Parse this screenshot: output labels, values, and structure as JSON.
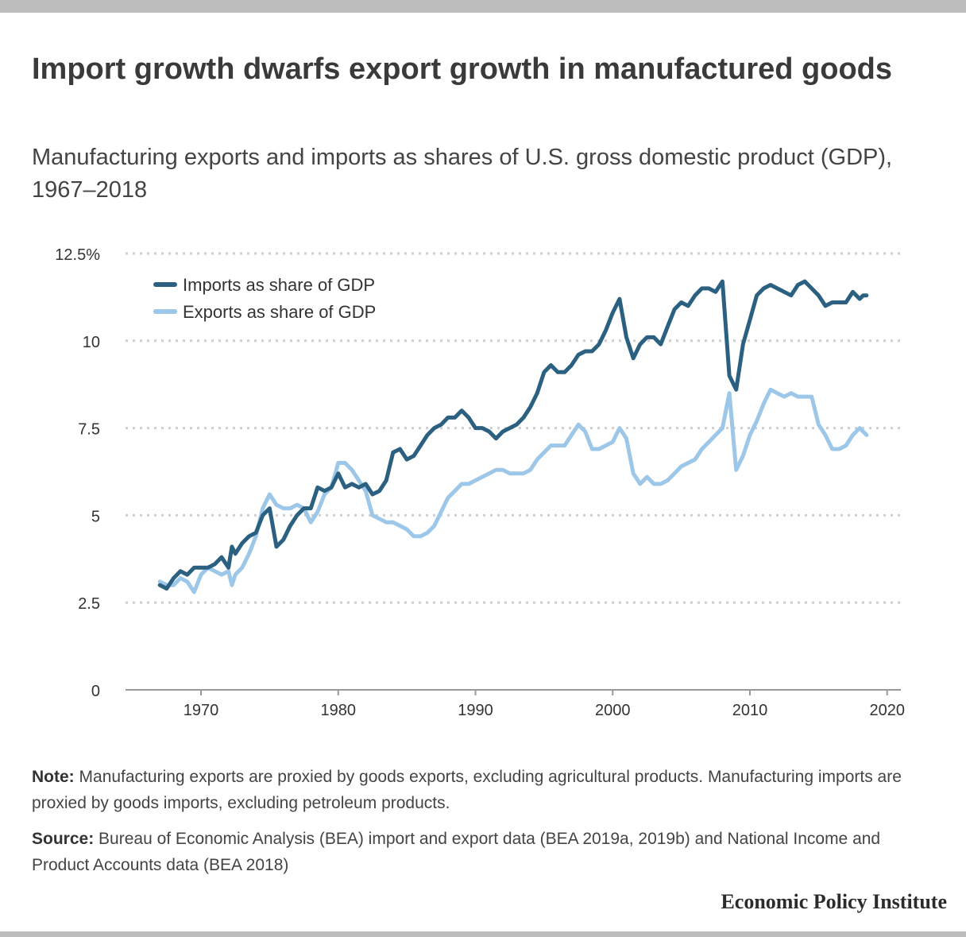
{
  "header": {
    "title": "Import growth dwarfs export growth in manufactured goods",
    "subtitle": "Manufacturing exports and imports as shares of U.S. gross domestic product (GDP), 1967–2018"
  },
  "footer": {
    "note_label": "Note:",
    "note_text": "Manufacturing exports are proxied by goods exports, excluding agricultural products. Manufacturing imports are proxied by goods imports, excluding petroleum products.",
    "source_label": "Source:",
    "source_text": "Bureau of Economic Analysis (BEA) import and export data (BEA 2019a, 2019b) and National Income and Product Accounts data (BEA 2018)",
    "brand": "Economic Policy Institute"
  },
  "colors": {
    "imports": "#2b6081",
    "exports": "#9dc7e8",
    "grid": "#cfcfcf",
    "axis": "#999999"
  },
  "chart_data": {
    "type": "line",
    "xlim": [
      1964.5,
      2021
    ],
    "ylim": [
      0,
      12.5
    ],
    "x_ticks": [
      1970,
      1980,
      1990,
      2000,
      2010,
      2020
    ],
    "y_ticks": [
      0,
      2.5,
      5,
      7.5,
      10,
      12.5
    ],
    "y_tick_labels": [
      "0",
      "2.5",
      "5",
      "7.5",
      "10",
      "12.5%"
    ],
    "grid": "horizontal dotted",
    "legend_position": "top-left",
    "series": [
      {
        "name": "Imports as share of GDP",
        "color": "#2b6081",
        "x": [
          1967.0,
          1967.5,
          1968.0,
          1968.5,
          1969.0,
          1969.5,
          1970.0,
          1970.5,
          1971.0,
          1971.5,
          1972.0,
          1972.25,
          1972.5,
          1973.0,
          1973.5,
          1974.0,
          1974.5,
          1975.0,
          1975.5,
          1976.0,
          1976.5,
          1977.0,
          1977.5,
          1978.0,
          1978.5,
          1979.0,
          1979.5,
          1980.0,
          1980.5,
          1981.0,
          1981.5,
          1982.0,
          1982.5,
          1983.0,
          1983.5,
          1984.0,
          1984.5,
          1985.0,
          1985.5,
          1986.0,
          1986.5,
          1987.0,
          1987.5,
          1988.0,
          1988.5,
          1989.0,
          1989.5,
          1990.0,
          1990.5,
          1991.0,
          1991.5,
          1992.0,
          1992.5,
          1993.0,
          1993.5,
          1994.0,
          1994.5,
          1995.0,
          1995.5,
          1996.0,
          1996.5,
          1997.0,
          1997.5,
          1998.0,
          1998.5,
          1999.0,
          1999.5,
          2000.0,
          2000.5,
          2001.0,
          2001.5,
          2002.0,
          2002.5,
          2003.0,
          2003.5,
          2004.0,
          2004.5,
          2005.0,
          2005.5,
          2006.0,
          2006.5,
          2007.0,
          2007.5,
          2008.0,
          2008.5,
          2009.0,
          2009.5,
          2010.0,
          2010.5,
          2011.0,
          2011.5,
          2012.0,
          2012.5,
          2013.0,
          2013.5,
          2014.0,
          2014.5,
          2015.0,
          2015.5,
          2016.0,
          2016.5,
          2017.0,
          2017.5,
          2018.0,
          2018.25,
          2018.5
        ],
        "values": [
          3.0,
          2.9,
          3.2,
          3.4,
          3.3,
          3.5,
          3.5,
          3.5,
          3.6,
          3.8,
          3.5,
          4.1,
          3.9,
          4.2,
          4.4,
          4.5,
          5.0,
          5.2,
          4.1,
          4.3,
          4.7,
          5.0,
          5.2,
          5.2,
          5.8,
          5.7,
          5.8,
          6.2,
          5.8,
          5.9,
          5.8,
          5.9,
          5.6,
          5.7,
          6.0,
          6.8,
          6.9,
          6.6,
          6.7,
          7.0,
          7.3,
          7.5,
          7.6,
          7.8,
          7.8,
          8.0,
          7.8,
          7.5,
          7.5,
          7.4,
          7.2,
          7.4,
          7.5,
          7.6,
          7.8,
          8.1,
          8.5,
          9.1,
          9.3,
          9.1,
          9.1,
          9.3,
          9.6,
          9.7,
          9.7,
          9.9,
          10.3,
          10.8,
          11.2,
          10.1,
          9.5,
          9.9,
          10.1,
          10.1,
          9.9,
          10.4,
          10.9,
          11.1,
          11.0,
          11.3,
          11.5,
          11.5,
          11.4,
          11.7,
          9.0,
          8.6,
          9.9,
          10.6,
          11.3,
          11.5,
          11.6,
          11.5,
          11.4,
          11.3,
          11.6,
          11.7,
          11.5,
          11.3,
          11.0,
          11.1,
          11.1,
          11.1,
          11.4,
          11.2,
          11.3,
          11.3
        ]
      },
      {
        "name": "Exports as share of GDP",
        "color": "#9dc7e8",
        "x": [
          1967.0,
          1967.5,
          1968.0,
          1968.5,
          1969.0,
          1969.5,
          1970.0,
          1970.5,
          1971.0,
          1971.5,
          1972.0,
          1972.25,
          1972.5,
          1973.0,
          1973.5,
          1974.0,
          1974.5,
          1975.0,
          1975.5,
          1976.0,
          1976.5,
          1977.0,
          1977.5,
          1978.0,
          1978.5,
          1979.0,
          1979.5,
          1980.0,
          1980.5,
          1981.0,
          1981.5,
          1982.0,
          1982.5,
          1983.0,
          1983.5,
          1984.0,
          1984.5,
          1985.0,
          1985.5,
          1986.0,
          1986.5,
          1987.0,
          1987.5,
          1988.0,
          1988.5,
          1989.0,
          1989.5,
          1990.0,
          1990.5,
          1991.0,
          1991.5,
          1992.0,
          1992.5,
          1993.0,
          1993.5,
          1994.0,
          1994.5,
          1995.0,
          1995.5,
          1996.0,
          1996.5,
          1997.0,
          1997.5,
          1998.0,
          1998.5,
          1999.0,
          1999.5,
          2000.0,
          2000.5,
          2001.0,
          2001.5,
          2002.0,
          2002.5,
          2003.0,
          2003.5,
          2004.0,
          2004.5,
          2005.0,
          2005.5,
          2006.0,
          2006.5,
          2007.0,
          2007.5,
          2008.0,
          2008.5,
          2009.0,
          2009.5,
          2010.0,
          2010.5,
          2011.0,
          2011.5,
          2012.0,
          2012.5,
          2013.0,
          2013.5,
          2014.0,
          2014.5,
          2015.0,
          2015.5,
          2016.0,
          2016.5,
          2017.0,
          2017.5,
          2018.0,
          2018.25,
          2018.5
        ],
        "values": [
          3.1,
          3.0,
          3.0,
          3.2,
          3.1,
          2.8,
          3.3,
          3.5,
          3.4,
          3.3,
          3.4,
          3.0,
          3.3,
          3.5,
          3.9,
          4.4,
          5.2,
          5.6,
          5.3,
          5.2,
          5.2,
          5.3,
          5.2,
          4.8,
          5.1,
          5.6,
          5.8,
          6.5,
          6.5,
          6.3,
          6.0,
          5.7,
          5.0,
          4.9,
          4.8,
          4.8,
          4.7,
          4.6,
          4.4,
          4.4,
          4.5,
          4.7,
          5.1,
          5.5,
          5.7,
          5.9,
          5.9,
          6.0,
          6.1,
          6.2,
          6.3,
          6.3,
          6.2,
          6.2,
          6.2,
          6.3,
          6.6,
          6.8,
          7.0,
          7.0,
          7.0,
          7.3,
          7.6,
          7.4,
          6.9,
          6.9,
          7.0,
          7.1,
          7.5,
          7.2,
          6.2,
          5.9,
          6.1,
          5.9,
          5.9,
          6.0,
          6.2,
          6.4,
          6.5,
          6.6,
          6.9,
          7.1,
          7.3,
          7.5,
          8.5,
          6.3,
          6.7,
          7.3,
          7.7,
          8.2,
          8.6,
          8.5,
          8.4,
          8.5,
          8.4,
          8.4,
          8.4,
          7.6,
          7.3,
          6.9,
          6.9,
          7.0,
          7.3,
          7.5,
          7.4,
          7.3
        ]
      }
    ]
  }
}
